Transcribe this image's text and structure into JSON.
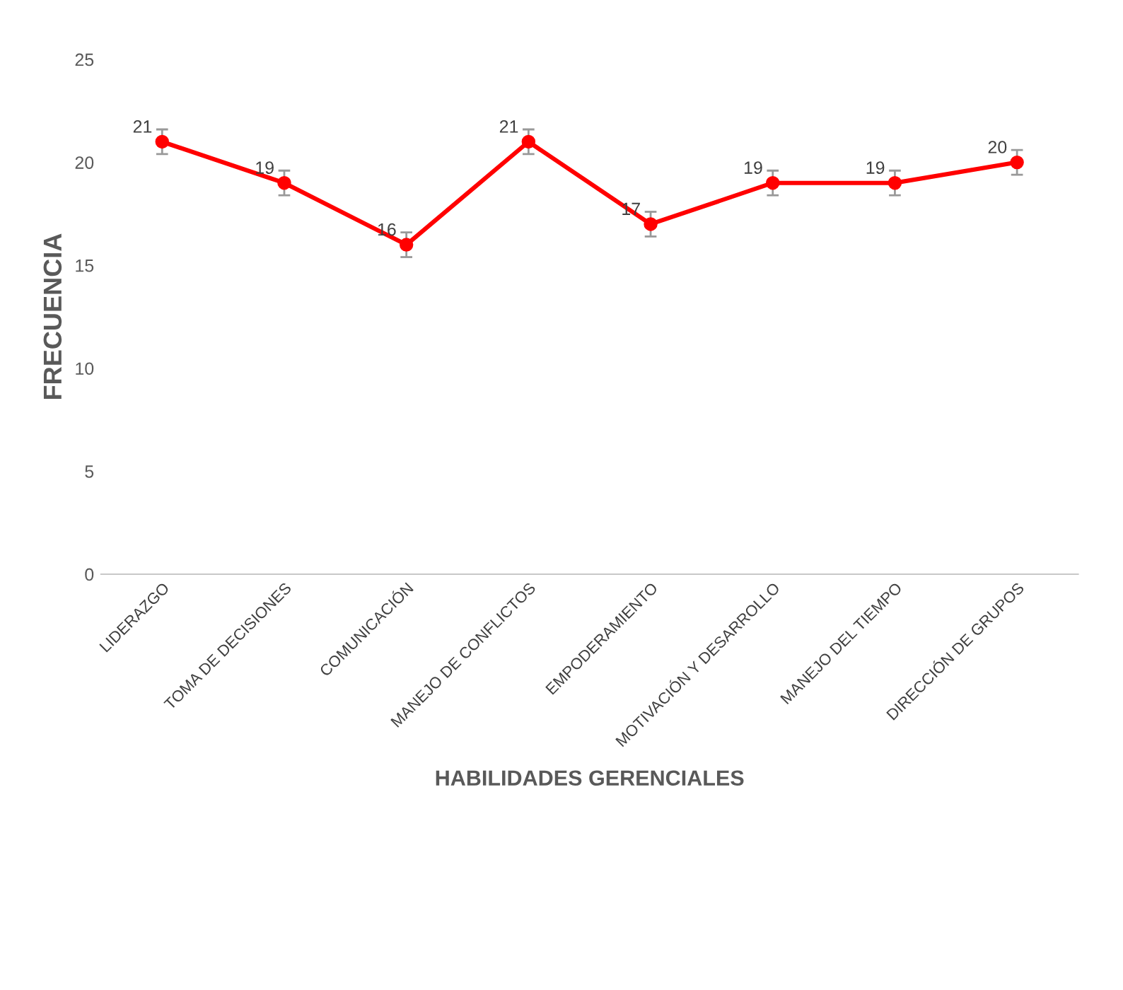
{
  "chart_data": {
    "type": "line",
    "xlabel": "HABILIDADES GERENCIALES",
    "ylabel": "FRECUENCIA",
    "categories": [
      "LIDERAZGO",
      "TOMA DE DECISIONES",
      "COMUNICACIÓN",
      "MANEJO DE CONFLICTOS",
      "EMPODERAMIENTO",
      "MOTIVACIÓN Y DESARROLLO",
      "MANEJO DEL TIEMPO",
      "DIRECCIÓN DE GRUPOS"
    ],
    "series": [
      {
        "color": "#ff0000",
        "values": [
          21,
          19,
          16,
          21,
          17,
          19,
          19,
          20
        ],
        "errors": [
          0.6,
          0.6,
          0.6,
          0.6,
          0.6,
          0.6,
          0.6,
          0.6
        ]
      }
    ],
    "ylim": [
      0,
      25
    ],
    "yticks": [
      0,
      5,
      10,
      15,
      20,
      25
    ],
    "grid": false,
    "legend": false,
    "marker": "circle",
    "line_style": "solid",
    "data_labels": true
  }
}
